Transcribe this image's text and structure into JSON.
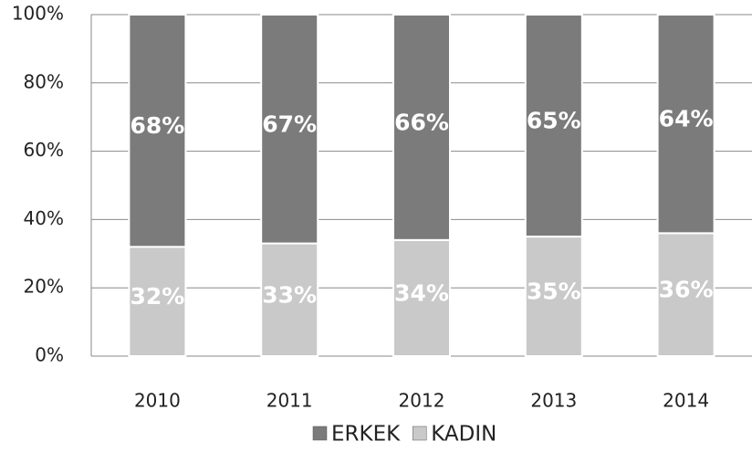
{
  "chart_data": {
    "type": "stacked_bar",
    "categories": [
      "2010",
      "2011",
      "2012",
      "2013",
      "2014"
    ],
    "series": [
      {
        "name": "ERKEK",
        "color": "#7b7b7b",
        "values": [
          68,
          67,
          66,
          65,
          64
        ],
        "value_labels": [
          "68%",
          "67%",
          "66%",
          "65%",
          "64%"
        ]
      },
      {
        "name": "KADIN",
        "color": "#c9c9c9",
        "values": [
          32,
          33,
          34,
          35,
          36
        ],
        "value_labels": [
          "32%",
          "33%",
          "34%",
          "35%",
          "36%"
        ]
      }
    ],
    "ylim": [
      0,
      100
    ],
    "yticks": [
      {
        "value": 0,
        "label": "0%"
      },
      {
        "value": 20,
        "label": "20%"
      },
      {
        "value": 40,
        "label": "40%"
      },
      {
        "value": 60,
        "label": "60%"
      },
      {
        "value": 80,
        "label": "80%"
      },
      {
        "value": 100,
        "label": "100%"
      }
    ],
    "grid": true
  }
}
